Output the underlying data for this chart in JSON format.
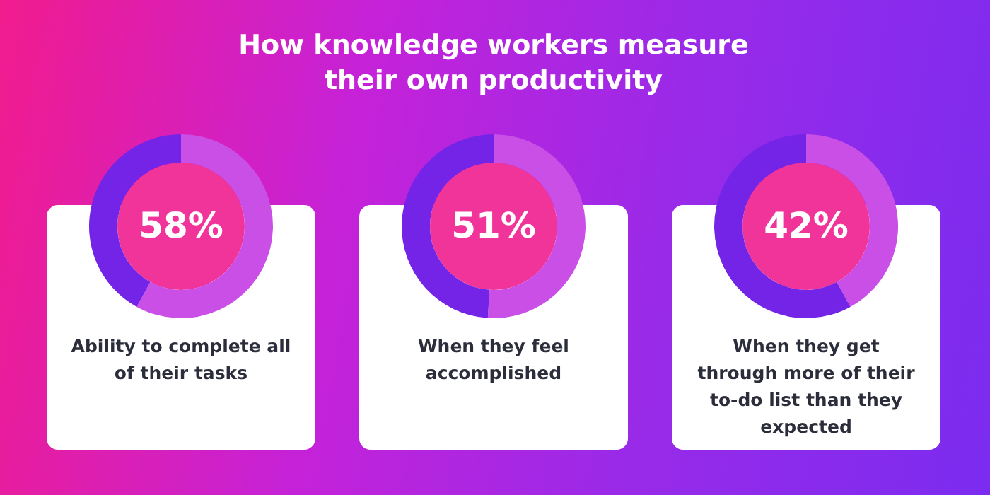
{
  "chart_data": [
    {
      "type": "donut",
      "categories": [
        null,
        null
      ],
      "values": [
        58,
        42
      ],
      "colors": [
        "#c94fe6",
        "#7424e6"
      ],
      "value_labels": [
        "58%",
        null
      ],
      "annotations": [
        "Ability to complete all of their tasks"
      ]
    },
    {
      "type": "donut",
      "title": "How knowledge workers measure their own productivity",
      "categories": [
        null,
        null
      ],
      "values": [
        51,
        49
      ],
      "colors": [
        "#c94fe6",
        "#7424e6"
      ],
      "value_labels": [
        "51%",
        null
      ],
      "annotations": [
        "When they feel accomplished"
      ]
    },
    {
      "type": "donut",
      "categories": [
        null,
        null
      ],
      "values": [
        42,
        58
      ],
      "colors": [
        "#c94fe6",
        "#7424e6"
      ],
      "value_labels": [
        "42%",
        null
      ],
      "annotations": [
        "When they get through more of their to-do list than they expected"
      ]
    }
  ]
}
